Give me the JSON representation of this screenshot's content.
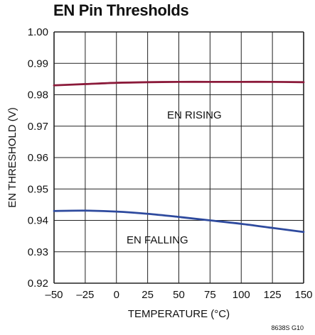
{
  "chart_data": {
    "type": "line",
    "title": "EN Pin Thresholds",
    "xlabel": "TEMPERATURE (°C)",
    "ylabel": "EN THRESHOLD (V)",
    "xlim": [
      -50,
      150
    ],
    "ylim": [
      0.92,
      1.0
    ],
    "x_ticks": [
      -50,
      -25,
      0,
      25,
      50,
      75,
      100,
      125,
      150
    ],
    "x_tick_labels": [
      "–50",
      "–25",
      "0",
      "25",
      "50",
      "75",
      "100",
      "125",
      "150"
    ],
    "y_ticks": [
      0.92,
      0.93,
      0.94,
      0.95,
      0.96,
      0.97,
      0.98,
      0.99,
      1.0
    ],
    "y_tick_labels": [
      "0.92",
      "0.93",
      "0.94",
      "0.95",
      "0.96",
      "0.97",
      "0.98",
      "0.99",
      "1.00"
    ],
    "grid": true,
    "series": [
      {
        "name": "EN RISING",
        "color": "#8b1a3a",
        "x": [
          -50,
          -25,
          0,
          25,
          50,
          75,
          100,
          125,
          150
        ],
        "y": [
          0.983,
          0.9834,
          0.9838,
          0.984,
          0.9841,
          0.9841,
          0.9841,
          0.9841,
          0.984
        ]
      },
      {
        "name": "EN FALLING",
        "color": "#2e4a9e",
        "x": [
          -50,
          -25,
          0,
          25,
          50,
          75,
          100,
          125,
          150
        ],
        "y": [
          0.943,
          0.9431,
          0.9428,
          0.9421,
          0.9411,
          0.94,
          0.9389,
          0.9376,
          0.9363
        ]
      }
    ],
    "annotations": [
      "EN RISING",
      "EN FALLING"
    ],
    "figure_code": "8638S G10"
  }
}
